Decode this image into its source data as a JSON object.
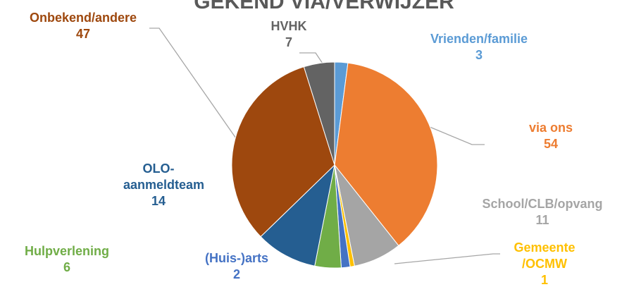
{
  "chart_data": {
    "type": "pie",
    "title": "GEKEND VIA/VERWIJZER",
    "categories": [
      "Vrienden/familie",
      "via ons",
      "School/CLB/opvang",
      "Gemeente /OCMW",
      "(Huis-)arts",
      "Hulpverlening",
      "OLO-aanmeldteam",
      "Onbekend/andere",
      "HVHK"
    ],
    "values": [
      3,
      54,
      11,
      1,
      2,
      6,
      14,
      47,
      7
    ],
    "colors": [
      "#5b9bd5",
      "#ed7d31",
      "#a5a5a5",
      "#ffc000",
      "#4472c4",
      "#70ad47",
      "#255e91",
      "#9e480e",
      "#636363"
    ]
  }
}
